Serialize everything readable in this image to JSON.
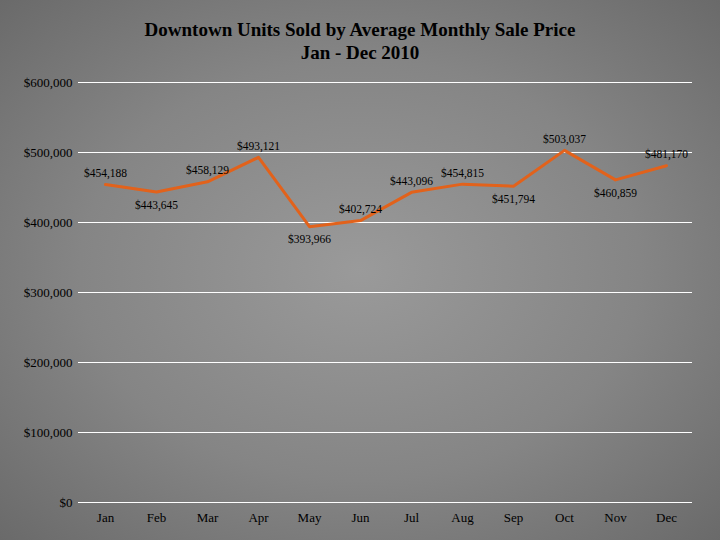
{
  "chart_data": {
    "type": "line",
    "title": "Downtown Units Sold by Average Monthly Sale Price",
    "subtitle": "Jan - Dec 2010",
    "categories": [
      "Jan",
      "Feb",
      "Mar",
      "Apr",
      "May",
      "Jun",
      "Jul",
      "Aug",
      "Sep",
      "Oct",
      "Nov",
      "Dec"
    ],
    "values": [
      454188,
      443645,
      458129,
      493121,
      393966,
      402724,
      443096,
      454815,
      451794,
      503037,
      460859,
      481170
    ],
    "value_labels": [
      "$454,188",
      "$443,645",
      "$458,129",
      "$493,121",
      "$393,966",
      "$402,724",
      "$443,096",
      "$454,815",
      "$451,794",
      "$503,037",
      "$460,859",
      "$481,170"
    ],
    "color": "#e2621b",
    "ylim": [
      0,
      600000
    ],
    "yticks": [
      {
        "value": 0,
        "label": "$0"
      },
      {
        "value": 100000,
        "label": "$100,000"
      },
      {
        "value": 200000,
        "label": "$200,000"
      },
      {
        "value": 300000,
        "label": "$300,000"
      },
      {
        "value": 400000,
        "label": "$400,000"
      },
      {
        "value": 500000,
        "label": "$500,000"
      },
      {
        "value": 600000,
        "label": "$600,000"
      }
    ],
    "grid": true,
    "data_labels": true
  }
}
